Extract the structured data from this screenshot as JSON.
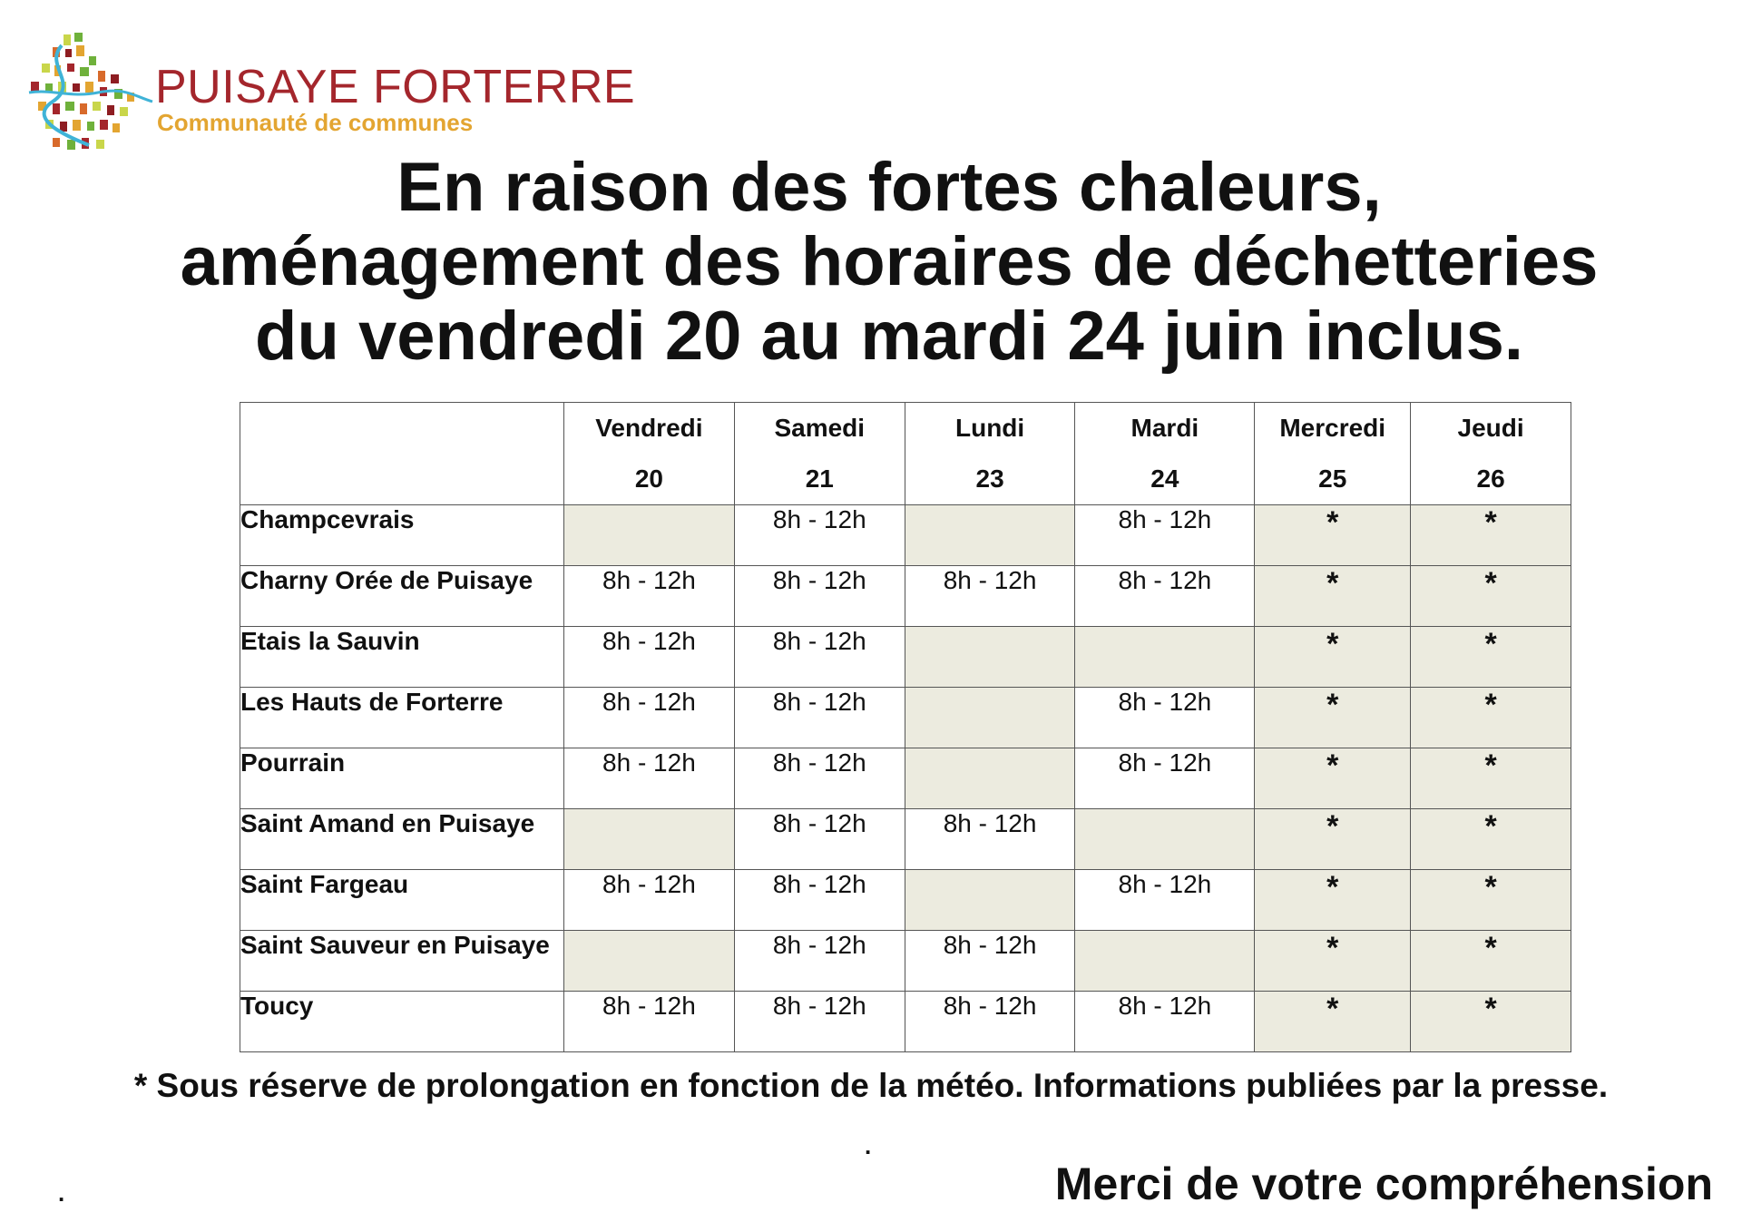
{
  "logo": {
    "name": "PUISAYE FORTERRE",
    "subtitle": "Communauté de communes"
  },
  "title": {
    "line1": "En raison des fortes chaleurs,",
    "line2": "aménagement des horaires de déchetteries",
    "line3": "du vendredi 20 au mardi 24 juin inclus."
  },
  "table": {
    "columns": [
      {
        "day": "Vendredi",
        "date": "20"
      },
      {
        "day": "Samedi",
        "date": "21"
      },
      {
        "day": "Lundi",
        "date": "23"
      },
      {
        "day": "Mardi",
        "date": "24"
      },
      {
        "day": "Mercredi",
        "date": "25"
      },
      {
        "day": "Jeudi",
        "date": "26"
      }
    ],
    "rows": [
      {
        "site": "Champcevrais",
        "hours": [
          "",
          "8h - 12h",
          "",
          "8h - 12h",
          "*",
          "*"
        ]
      },
      {
        "site": "Charny Orée de Puisaye",
        "hours": [
          "8h - 12h",
          "8h - 12h",
          "8h - 12h",
          "8h - 12h",
          "*",
          "*"
        ]
      },
      {
        "site": "Etais la Sauvin",
        "hours": [
          "8h - 12h",
          "8h - 12h",
          "",
          "",
          "*",
          "*"
        ]
      },
      {
        "site": "Les Hauts de Forterre",
        "hours": [
          "8h - 12h",
          "8h - 12h",
          "",
          "8h - 12h",
          "*",
          "*"
        ]
      },
      {
        "site": "Pourrain",
        "hours": [
          "8h - 12h",
          "8h - 12h",
          "",
          "8h - 12h",
          "*",
          "*"
        ]
      },
      {
        "site": "Saint Amand en Puisaye",
        "hours": [
          "",
          "8h - 12h",
          "8h - 12h",
          "",
          "*",
          "*"
        ]
      },
      {
        "site": "Saint Fargeau",
        "hours": [
          "8h - 12h",
          "8h - 12h",
          "",
          "8h - 12h",
          "*",
          "*"
        ]
      },
      {
        "site": "Saint Sauveur en Puisaye",
        "hours": [
          "",
          "8h - 12h",
          "8h - 12h",
          "",
          "*",
          "*"
        ]
      },
      {
        "site": "Toucy",
        "hours": [
          "8h - 12h",
          "8h - 12h",
          "8h - 12h",
          "8h - 12h",
          "*",
          "*"
        ]
      }
    ]
  },
  "note": "* Sous réserve de prolongation en fonction de la météo. Informations publiées par la presse.",
  "dot_center": ".",
  "dot_left": ".",
  "thanks": "Merci de votre compréhension",
  "colors": {
    "brand_red": "#a4262c",
    "brand_gold": "#e3a531",
    "closed_cell": "#ecebdf"
  }
}
